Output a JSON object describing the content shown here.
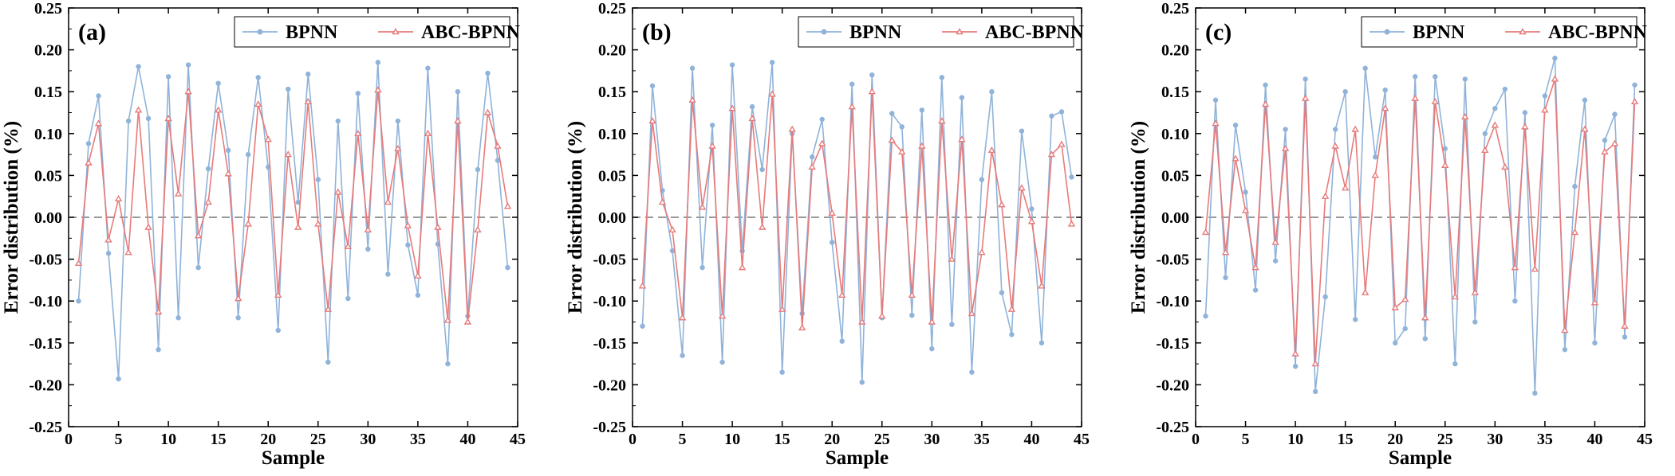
{
  "figure": {
    "colors": {
      "bpnn": "#8fb3d9",
      "abc_bpnn": "#e77b7b",
      "zero_line": "#777777",
      "axis": "#000000"
    }
  },
  "chart_data": [
    {
      "type": "line",
      "panel_label": "(a)",
      "xlabel": "Sample",
      "ylabel": "Error distribution (%)",
      "xlim": [
        0,
        45
      ],
      "ylim": [
        -0.25,
        0.25
      ],
      "xticks": [
        0,
        5,
        10,
        15,
        20,
        25,
        30,
        35,
        40,
        45
      ],
      "yticks": [
        -0.25,
        -0.2,
        -0.15,
        -0.1,
        -0.05,
        0.0,
        0.05,
        0.1,
        0.15,
        0.2,
        0.25
      ],
      "ytick_labels": [
        "-0.25",
        "-0.20",
        "-0.15",
        "-0.10",
        "-0.05",
        "0.00",
        "0.05",
        "0.10",
        "0.15",
        "0.20",
        "0.25"
      ],
      "zero_line": true,
      "legend": {
        "position": "top-right"
      },
      "x": [
        1,
        2,
        3,
        4,
        5,
        6,
        7,
        8,
        9,
        10,
        11,
        12,
        13,
        14,
        15,
        16,
        17,
        18,
        19,
        20,
        21,
        22,
        23,
        24,
        25,
        26,
        27,
        28,
        29,
        30,
        31,
        32,
        33,
        34,
        35,
        36,
        37,
        38,
        39,
        40,
        41,
        42,
        43,
        44
      ],
      "series": [
        {
          "name": "BPNN",
          "color": "#8fb3d9",
          "values": [
            -0.1,
            0.088,
            0.145,
            -0.043,
            -0.193,
            0.115,
            0.18,
            0.118,
            -0.158,
            0.168,
            -0.12,
            0.182,
            -0.06,
            0.058,
            0.16,
            0.08,
            -0.12,
            0.075,
            0.167,
            0.06,
            -0.135,
            0.153,
            0.018,
            0.171,
            0.045,
            -0.173,
            0.115,
            -0.097,
            0.148,
            -0.038,
            0.185,
            -0.068,
            0.115,
            -0.033,
            -0.093,
            0.178,
            -0.032,
            -0.175,
            0.15,
            -0.118,
            0.057,
            0.172,
            0.068,
            -0.06
          ]
        },
        {
          "name": "ABC-BPNN",
          "color": "#e77b7b",
          "values": [
            -0.055,
            0.065,
            0.112,
            -0.027,
            0.022,
            -0.042,
            0.128,
            -0.012,
            -0.113,
            0.118,
            0.028,
            0.15,
            -0.022,
            0.018,
            0.128,
            0.052,
            -0.097,
            -0.008,
            0.135,
            0.093,
            -0.093,
            0.075,
            -0.012,
            0.138,
            -0.008,
            -0.11,
            0.03,
            -0.035,
            0.1,
            -0.015,
            0.152,
            0.018,
            0.082,
            -0.01,
            -0.07,
            0.1,
            -0.012,
            -0.123,
            0.115,
            -0.125,
            -0.015,
            0.125,
            0.085,
            0.013
          ]
        }
      ]
    },
    {
      "type": "line",
      "panel_label": "(b)",
      "xlabel": "Sample",
      "ylabel": "Error distribution (%)",
      "xlim": [
        0,
        45
      ],
      "ylim": [
        -0.25,
        0.25
      ],
      "xticks": [
        0,
        5,
        10,
        15,
        20,
        25,
        30,
        35,
        40,
        45
      ],
      "yticks": [
        -0.25,
        -0.2,
        -0.15,
        -0.1,
        -0.05,
        0.0,
        0.05,
        0.1,
        0.15,
        0.2,
        0.25
      ],
      "ytick_labels": [
        "-0.25",
        "-0.20",
        "-0.15",
        "-0.10",
        "-0.05",
        "0.00",
        "0.05",
        "0.10",
        "0.15",
        "0.20",
        "0.25"
      ],
      "zero_line": true,
      "legend": {
        "position": "top-right"
      },
      "x": [
        1,
        2,
        3,
        4,
        5,
        6,
        7,
        8,
        9,
        10,
        11,
        12,
        13,
        14,
        15,
        16,
        17,
        18,
        19,
        20,
        21,
        22,
        23,
        24,
        25,
        26,
        27,
        28,
        29,
        30,
        31,
        32,
        33,
        34,
        35,
        36,
        37,
        38,
        39,
        40,
        41,
        42,
        43,
        44
      ],
      "series": [
        {
          "name": "BPNN",
          "color": "#8fb3d9",
          "values": [
            -0.13,
            0.157,
            0.032,
            -0.04,
            -0.165,
            0.178,
            -0.06,
            0.11,
            -0.173,
            0.182,
            -0.04,
            0.132,
            0.057,
            0.185,
            -0.185,
            0.1,
            -0.115,
            0.072,
            0.117,
            -0.03,
            -0.148,
            0.159,
            -0.197,
            0.17,
            -0.12,
            0.124,
            0.108,
            -0.117,
            0.128,
            -0.157,
            0.167,
            -0.128,
            0.143,
            -0.185,
            0.045,
            0.15,
            -0.09,
            -0.14,
            0.103,
            0.01,
            -0.15,
            0.121,
            0.126,
            0.048
          ]
        },
        {
          "name": "ABC-BPNN",
          "color": "#e77b7b",
          "values": [
            -0.082,
            0.115,
            0.018,
            -0.015,
            -0.12,
            0.14,
            0.012,
            0.085,
            -0.118,
            0.13,
            -0.06,
            0.118,
            -0.012,
            0.147,
            -0.11,
            0.105,
            -0.132,
            0.06,
            0.088,
            0.005,
            -0.093,
            0.132,
            -0.125,
            0.15,
            -0.118,
            0.092,
            0.078,
            -0.093,
            0.085,
            -0.125,
            0.115,
            -0.05,
            0.093,
            -0.115,
            -0.042,
            0.08,
            0.015,
            -0.11,
            0.035,
            -0.005,
            -0.082,
            0.075,
            0.087,
            -0.008
          ]
        }
      ]
    },
    {
      "type": "line",
      "panel_label": "(c)",
      "xlabel": "Sample",
      "ylabel": "Error distribution (%)",
      "xlim": [
        0,
        45
      ],
      "ylim": [
        -0.25,
        0.25
      ],
      "xticks": [
        0,
        5,
        10,
        15,
        20,
        25,
        30,
        35,
        40,
        45
      ],
      "yticks": [
        -0.25,
        -0.2,
        -0.15,
        -0.1,
        -0.05,
        0.0,
        0.05,
        0.1,
        0.15,
        0.2,
        0.25
      ],
      "ytick_labels": [
        "-0.25",
        "-0.20",
        "-0.15",
        "-0.10",
        "-0.05",
        "0.00",
        "0.05",
        "0.10",
        "0.15",
        "0.20",
        "0.25"
      ],
      "zero_line": true,
      "legend": {
        "position": "top-right"
      },
      "x": [
        1,
        2,
        3,
        4,
        5,
        6,
        7,
        8,
        9,
        10,
        11,
        12,
        13,
        14,
        15,
        16,
        17,
        18,
        19,
        20,
        21,
        22,
        23,
        24,
        25,
        26,
        27,
        28,
        29,
        30,
        31,
        32,
        33,
        34,
        35,
        36,
        37,
        38,
        39,
        40,
        41,
        42,
        43,
        44
      ],
      "series": [
        {
          "name": "BPNN",
          "color": "#8fb3d9",
          "values": [
            -0.118,
            0.14,
            -0.072,
            0.11,
            0.03,
            -0.087,
            0.158,
            -0.052,
            0.105,
            -0.178,
            0.165,
            -0.208,
            -0.095,
            0.105,
            0.15,
            -0.122,
            0.178,
            0.072,
            0.152,
            -0.15,
            -0.133,
            0.168,
            -0.145,
            0.168,
            0.082,
            -0.175,
            0.165,
            -0.125,
            0.1,
            0.13,
            0.153,
            -0.1,
            0.125,
            -0.21,
            0.145,
            0.19,
            -0.158,
            0.037,
            0.14,
            -0.15,
            0.092,
            0.123,
            -0.143,
            0.158
          ]
        },
        {
          "name": "ABC-BPNN",
          "color": "#e77b7b",
          "values": [
            -0.018,
            0.112,
            -0.042,
            0.07,
            0.008,
            -0.06,
            0.135,
            -0.03,
            0.082,
            -0.163,
            0.142,
            -0.175,
            0.025,
            0.085,
            0.035,
            0.105,
            -0.09,
            0.05,
            0.13,
            -0.108,
            -0.098,
            0.142,
            -0.12,
            0.138,
            0.062,
            -0.095,
            0.12,
            -0.09,
            0.08,
            0.11,
            0.06,
            -0.06,
            0.108,
            -0.062,
            0.128,
            0.165,
            -0.135,
            -0.018,
            0.105,
            -0.102,
            0.078,
            0.088,
            -0.13,
            0.138
          ]
        }
      ]
    }
  ]
}
